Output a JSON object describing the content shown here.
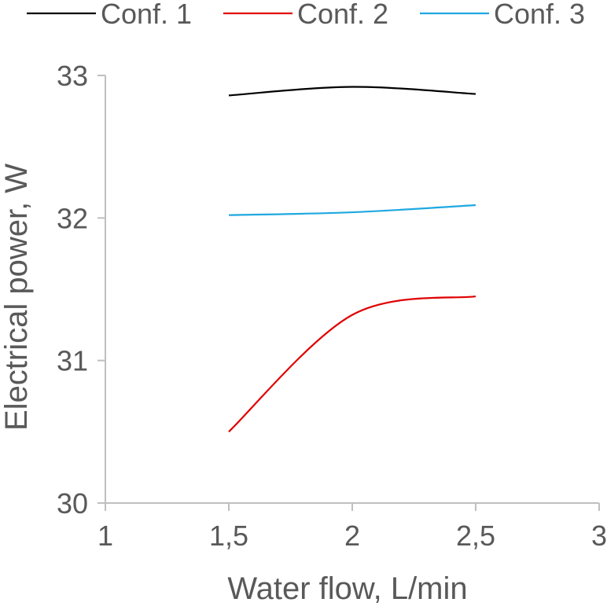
{
  "chart_data": {
    "type": "line",
    "title": "",
    "xlabel": "Water flow, L/min",
    "ylabel": "Electrical power, W",
    "xlim": [
      1,
      3
    ],
    "ylim": [
      30,
      33
    ],
    "x_ticks": [
      1,
      1.5,
      2,
      2.5,
      3
    ],
    "x_tick_labels": [
      "1",
      "1,5",
      "2",
      "2,5",
      "3"
    ],
    "y_ticks": [
      30,
      31,
      32,
      33
    ],
    "y_tick_labels": [
      "30",
      "31",
      "32",
      "33"
    ],
    "grid": false,
    "smooth": true,
    "legend_position": "top",
    "x": [
      1.5,
      2,
      2.5
    ],
    "series": [
      {
        "name": "Conf. 1",
        "color": "#000000",
        "values": [
          32.86,
          32.92,
          32.87
        ]
      },
      {
        "name": "Conf. 2",
        "color": "#e00000",
        "values": [
          30.5,
          31.32,
          31.45
        ]
      },
      {
        "name": "Conf. 3",
        "color": "#1fa8e0",
        "values": [
          32.02,
          32.04,
          32.09
        ]
      }
    ]
  }
}
